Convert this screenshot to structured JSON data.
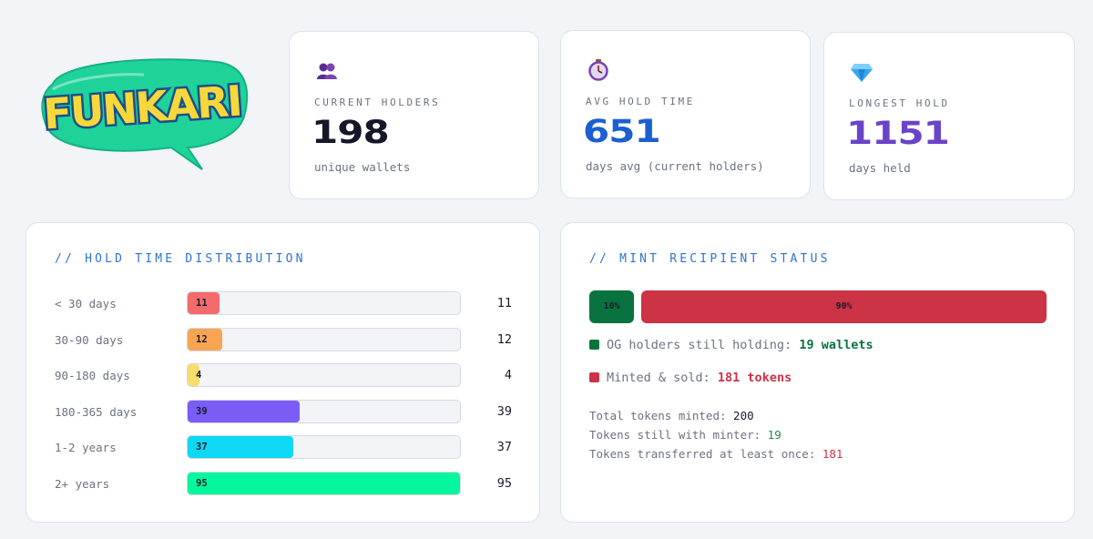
{
  "logo": {
    "text": "FUNKARI",
    "colors": {
      "bubble": "#1fd29a",
      "letters": "#f7d83a",
      "outline": "#1d4e8c"
    }
  },
  "stats": [
    {
      "icon": "people-icon",
      "label": "CURRENT HOLDERS",
      "value": "198",
      "sub": "unique wallets",
      "color": "#161628"
    },
    {
      "icon": "stopwatch-icon",
      "label": "AVG HOLD TIME",
      "value": "651",
      "sub": "days avg (current holders)",
      "color": "#1b5fd0"
    },
    {
      "icon": "gem-icon",
      "label": "LONGEST HOLD",
      "value": "1151",
      "sub": "days held",
      "color": "#6a43c9"
    }
  ],
  "distribution": {
    "title": "// HOLD TIME DISTRIBUTION",
    "max": 95,
    "rows": [
      {
        "label": "< 30 days",
        "count": 11,
        "bar_label": "11",
        "count_label": "11",
        "color": "#f36b6b"
      },
      {
        "label": "30-90 days",
        "count": 12,
        "bar_label": "12",
        "count_label": "12",
        "color": "#f7a553"
      },
      {
        "label": "90-180 days",
        "count": 4,
        "bar_label": "4",
        "count_label": "4",
        "color": "#f7dd6b"
      },
      {
        "label": "180-365 days",
        "count": 39,
        "bar_label": "39",
        "count_label": "39",
        "color": "#7b5cf5"
      },
      {
        "label": "1-2 years",
        "count": 37,
        "bar_label": "37",
        "count_label": "37",
        "color": "#0fd8f4"
      },
      {
        "label": "2+ years",
        "count": 95,
        "bar_label": "95",
        "count_label": "95",
        "color": "#04f79c"
      }
    ]
  },
  "mint": {
    "title": "// MINT RECIPIENT STATUS",
    "segments": [
      {
        "pct": 10,
        "label": "10%",
        "color": "#08733f"
      },
      {
        "pct": 90,
        "label": "90%",
        "color": "#cc3344"
      }
    ],
    "legend": [
      {
        "text": "OG holders still holding: ",
        "value": "19 wallets",
        "color": "#08733f"
      },
      {
        "text": "Minted & sold: ",
        "value": "181 tokens",
        "color": "#cc3344"
      }
    ],
    "totals": [
      {
        "label": "Total tokens minted: ",
        "value": "200",
        "color": "#1a1a2e"
      },
      {
        "label": "Tokens still with minter: ",
        "value": "19",
        "color": "#1e8a4f"
      },
      {
        "label": "Tokens transferred at least once: ",
        "value": "181",
        "color": "#cc3344"
      }
    ]
  }
}
